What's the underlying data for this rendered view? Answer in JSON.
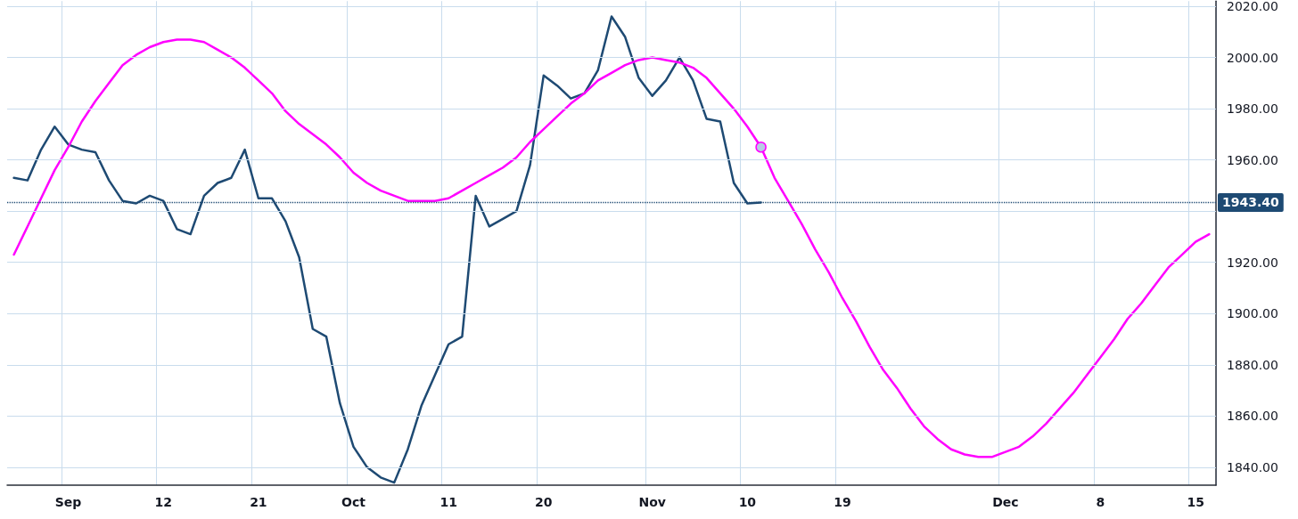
{
  "chart_data": {
    "type": "line",
    "categories": [
      null,
      null,
      null,
      null,
      "Sep",
      null,
      null,
      null,
      null,
      null,
      null,
      "12",
      null,
      null,
      null,
      null,
      null,
      null,
      "21",
      null,
      null,
      null,
      null,
      null,
      null,
      "Oct",
      null,
      null,
      null,
      null,
      null,
      null,
      "11",
      null,
      null,
      null,
      null,
      null,
      null,
      "20",
      null,
      null,
      null,
      null,
      null,
      null,
      null,
      "Nov",
      null,
      null,
      null,
      null,
      null,
      null,
      "10",
      null,
      null,
      null,
      null,
      null,
      null,
      "19",
      null,
      null,
      null,
      null,
      null,
      null,
      null,
      null,
      null,
      null,
      null,
      "Dec",
      null,
      null,
      null,
      null,
      null,
      null,
      "8",
      null,
      null,
      null,
      null,
      null,
      null,
      "15",
      null
    ],
    "series": [
      {
        "color": "#1e4a73",
        "values": [
          1953,
          1952,
          1964,
          1973,
          1966,
          1964,
          1963,
          1952,
          1944,
          1943,
          1946,
          1944,
          1933,
          1931,
          1946,
          1951,
          1953,
          1964,
          1945,
          1945,
          1936,
          1922,
          1894,
          1891,
          1865,
          1848,
          1840,
          1836,
          1834,
          1847,
          1864,
          1876,
          1888,
          1891,
          1946,
          1934,
          1937,
          1940,
          1958,
          1993,
          1989,
          1984,
          1986,
          1995,
          2016,
          2008,
          1992,
          1985,
          1991,
          2000,
          1991,
          1976,
          1975,
          1951,
          1943,
          1943.4,
          null,
          null,
          null,
          null,
          null,
          null,
          null,
          null,
          null,
          null,
          null,
          null,
          null,
          null,
          null,
          null,
          null,
          null,
          null,
          null,
          null,
          null,
          null,
          null,
          null,
          null,
          null,
          null,
          null,
          null,
          null,
          null,
          null
        ]
      },
      {
        "color": "#ff00ff",
        "values": [
          1923,
          1934,
          1945,
          1956,
          1965,
          1975,
          1983,
          1990,
          1997,
          2001,
          2004,
          2006,
          2007,
          2007,
          2006,
          2003,
          2000,
          1996,
          1991,
          1986,
          1979,
          1974,
          1970,
          1966,
          1961,
          1955,
          1951,
          1948,
          1946,
          1944,
          1944,
          1944,
          1945,
          1948,
          1951,
          1954,
          1957,
          1961,
          1967,
          1972,
          1977,
          1982,
          1986,
          1991,
          1994,
          1997,
          1999,
          2000,
          1999,
          1998,
          1996,
          1992,
          1986,
          1980,
          1973,
          1965,
          1953,
          1944,
          1935,
          1925,
          1916,
          1906,
          1897,
          1887,
          1878,
          1871,
          1863,
          1856,
          1851,
          1847,
          1845,
          1844,
          1844,
          1846,
          1848,
          1852,
          1857,
          1863,
          1869,
          1876,
          1883,
          1890,
          1898,
          1904,
          1911,
          1918,
          1923,
          1928,
          1931
        ]
      },
      {
        "type": "scatter",
        "marker": "circle",
        "color": "#b8cce4",
        "values": [
          null,
          null,
          null,
          null,
          null,
          null,
          null,
          null,
          null,
          null,
          null,
          null,
          null,
          null,
          null,
          null,
          null,
          null,
          null,
          null,
          null,
          null,
          null,
          null,
          null,
          null,
          null,
          null,
          null,
          null,
          null,
          null,
          null,
          null,
          null,
          null,
          null,
          null,
          null,
          null,
          null,
          null,
          null,
          null,
          null,
          null,
          null,
          null,
          null,
          null,
          null,
          null,
          null,
          null,
          null,
          1965,
          null,
          null,
          null,
          null,
          null,
          null,
          null,
          null,
          null,
          null,
          null,
          null,
          null,
          null,
          null,
          null,
          null,
          null,
          null,
          null,
          null,
          null,
          null,
          null,
          null,
          null,
          null,
          null,
          null,
          null,
          null,
          null,
          null
        ]
      }
    ],
    "ylim": [
      1833,
      2022
    ],
    "yticks": [
      {
        "value": 1840,
        "label": "1840.00"
      },
      {
        "value": 1860,
        "label": "1860.00"
      },
      {
        "value": 1880,
        "label": "1880.00"
      },
      {
        "value": 1900,
        "label": "1900.00"
      },
      {
        "value": 1920,
        "label": "1920.00"
      },
      {
        "value": 1940,
        "label": null
      },
      {
        "value": 1960,
        "label": "1960.00"
      },
      {
        "value": 1980,
        "label": "1980.00"
      },
      {
        "value": 2000,
        "label": "2000.00"
      },
      {
        "value": 2020,
        "label": "2020.00"
      }
    ],
    "ref_lines": [
      {
        "axis": "y",
        "value": 1943.4,
        "label": "1943.40",
        "color": "#1e4a73",
        "line_style": "dotted"
      }
    ],
    "grid": true,
    "marker": "none",
    "line_style": "solid"
  }
}
